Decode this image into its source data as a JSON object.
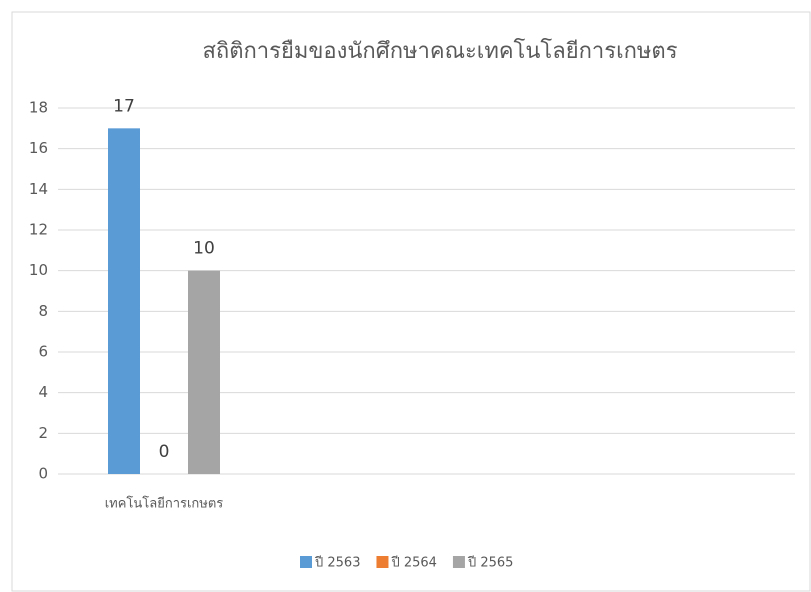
{
  "chart_data": {
    "type": "bar",
    "title": "สถิติการยืมของนักศึกษาคณะเทคโนโลยีการเกษตร",
    "categories": [
      "เทคโนโลยีการเกษตร"
    ],
    "series": [
      {
        "name": "ปี 2563",
        "color": "#5b9bd5",
        "values": [
          17
        ]
      },
      {
        "name": "ปี 2564",
        "color": "#ed7d31",
        "values": [
          0
        ]
      },
      {
        "name": "ปี 2565",
        "color": "#a5a5a5",
        "values": [
          10
        ]
      }
    ],
    "ylim": [
      0,
      18
    ],
    "yticks": [
      0,
      2,
      4,
      6,
      8,
      10,
      12,
      14,
      16,
      18
    ],
    "grid": true,
    "legend": "bottom"
  }
}
